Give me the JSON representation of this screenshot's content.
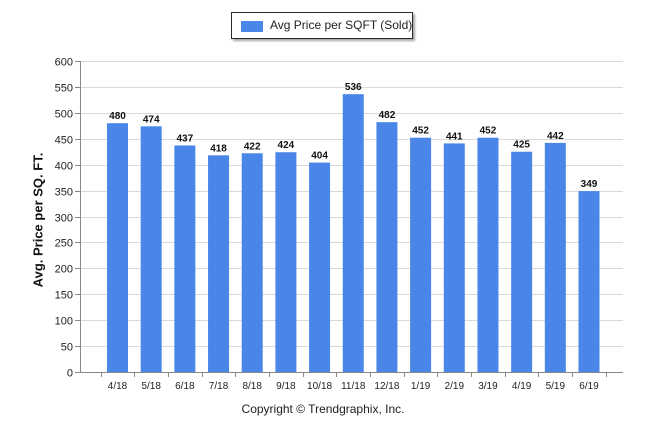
{
  "chart_data": {
    "type": "bar",
    "categories": [
      "4/18",
      "5/18",
      "6/18",
      "7/18",
      "8/18",
      "9/18",
      "10/18",
      "11/18",
      "12/18",
      "1/19",
      "2/19",
      "3/19",
      "4/19",
      "5/19",
      "6/19"
    ],
    "series": [
      {
        "name": "Avg Price per SQFT (Sold)",
        "values": [
          480,
          474,
          437,
          418,
          422,
          424,
          404,
          536,
          482,
          452,
          441,
          452,
          425,
          442,
          349
        ]
      }
    ],
    "ylabel": "Avg. Price per SQ. FT.",
    "xlabel": "",
    "ylim": [
      0,
      600
    ],
    "yticks": [
      0,
      50,
      100,
      150,
      200,
      250,
      300,
      350,
      400,
      450,
      500,
      550,
      600
    ],
    "grid": true,
    "legend_position": "top-center",
    "colors": {
      "bar": "#4a86e8",
      "grid": "#d9d9d9",
      "axis": "#888888"
    }
  },
  "legend": {
    "label": "Avg Price per SQFT (Sold)"
  },
  "footer": {
    "copyright": "Copyright © Trendgraphix, Inc."
  }
}
